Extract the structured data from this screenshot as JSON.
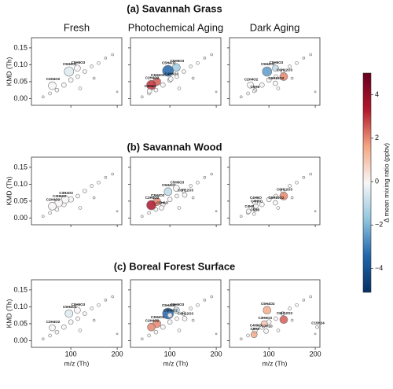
{
  "figure": {
    "row_titles": [
      "(a) Savannah Grass",
      "(b) Savannah Wood",
      "(c) Boreal Forest Surface"
    ],
    "column_titles": [
      "Fresh",
      "Photochemical Aging",
      "Dark Aging"
    ],
    "x_label": "m/z (Th)",
    "y_label": "KMD (Th)",
    "colorbar": {
      "label": "Δ mean mixing ratio (ppbv)",
      "lim": [
        -5.1,
        5.0
      ],
      "ticks": [
        {
          "value": -4,
          "label": "−4"
        },
        {
          "value": -2,
          "label": "−2"
        },
        0,
        2,
        4
      ],
      "colors": [
        "#053061",
        "#2166ac",
        "#92c5de",
        "#f7f7f7",
        "#f4a582",
        "#b2182b",
        "#67001f"
      ]
    }
  },
  "chart_data": [
    {
      "type": "scatter",
      "xlim": [
        15,
        210
      ],
      "ylim": [
        -0.02,
        0.18
      ],
      "xticks": [
        100,
        200
      ],
      "yticks": [
        {
          "value": 0,
          "label": "0.00"
        },
        0.05,
        {
          "value": 0.1,
          "label": "0.10"
        },
        0.15
      ],
      "x": [
        40,
        55,
        70,
        85,
        100,
        115,
        130,
        145,
        160,
        175,
        190,
        120,
        150,
        200,
        60,
        96,
        114
      ],
      "y": [
        0.005,
        0.015,
        0.025,
        0.04,
        0.055,
        0.065,
        0.08,
        0.095,
        0.105,
        0.12,
        0.13,
        0.03,
        0.06,
        0.02,
        0.038,
        0.08,
        0.09
      ],
      "size": [
        1.5,
        2,
        2.5,
        3,
        3,
        2.5,
        2.5,
        2,
        2,
        1.5,
        1.5,
        2,
        1.5,
        1,
        5,
        6,
        4
      ],
      "delta": [
        0,
        0,
        0,
        0,
        0,
        0,
        0,
        0,
        0,
        0,
        0,
        0,
        0,
        0,
        0,
        -0.5,
        0
      ],
      "labels": [
        null,
        null,
        null,
        null,
        null,
        null,
        null,
        null,
        null,
        null,
        null,
        null,
        null,
        null,
        "C2H4O2",
        "C5H4O2",
        "C5H6O3"
      ]
    },
    {
      "type": "scatter",
      "xlim": [
        15,
        210
      ],
      "ylim": [
        -0.02,
        0.18
      ],
      "xticks": [
        100,
        200
      ],
      "yticks": [
        {
          "value": 0,
          "label": "0.00"
        },
        0.05,
        {
          "value": 0.1,
          "label": "0.10"
        },
        0.15
      ],
      "x": [
        40,
        55,
        70,
        85,
        100,
        115,
        130,
        145,
        160,
        175,
        190,
        120,
        150,
        200,
        114,
        96,
        72,
        102,
        60,
        56
      ],
      "y": [
        0.005,
        0.015,
        0.025,
        0.04,
        0.055,
        0.065,
        0.08,
        0.095,
        0.105,
        0.12,
        0.13,
        0.03,
        0.06,
        0.02,
        0.092,
        0.082,
        0.05,
        0.058,
        0.04,
        0.022
      ],
      "size": [
        1.5,
        2,
        2.5,
        3,
        3,
        2.5,
        2.5,
        2,
        2,
        1.5,
        1.5,
        2,
        1.5,
        1,
        5,
        7,
        5,
        3,
        6,
        3
      ],
      "delta": [
        0,
        0,
        0,
        0,
        0,
        0,
        0,
        0,
        0,
        0,
        0,
        0,
        0,
        0,
        -1.5,
        -3.5,
        2.5,
        0,
        3,
        0
      ],
      "labels": [
        null,
        null,
        null,
        null,
        null,
        null,
        null,
        null,
        null,
        null,
        null,
        null,
        null,
        null,
        "C5H6O3",
        "C5H4O2",
        "C3H4O2",
        "C4H6O3",
        "C2H4O2",
        "C2H6O"
      ]
    },
    {
      "type": "scatter",
      "xlim": [
        15,
        210
      ],
      "ylim": [
        -0.02,
        0.18
      ],
      "xticks": [
        100,
        200
      ],
      "yticks": [
        {
          "value": 0,
          "label": "0.00"
        },
        0.05,
        {
          "value": 0.1,
          "label": "0.10"
        },
        0.15
      ],
      "x": [
        40,
        55,
        70,
        85,
        100,
        115,
        130,
        145,
        160,
        175,
        190,
        120,
        150,
        200,
        96,
        114,
        132,
        60,
        114,
        68
      ],
      "y": [
        0.005,
        0.015,
        0.025,
        0.04,
        0.055,
        0.065,
        0.08,
        0.095,
        0.105,
        0.12,
        0.13,
        0.03,
        0.06,
        0.02,
        0.08,
        0.09,
        0.065,
        0.04,
        0.045,
        0.022
      ],
      "size": [
        1.5,
        2,
        2.5,
        3,
        3,
        2.5,
        2.5,
        2,
        2,
        1.5,
        1.5,
        2,
        1.5,
        1,
        6,
        4,
        5,
        4,
        3,
        2
      ],
      "delta": [
        0,
        0,
        0,
        0,
        0,
        0,
        0,
        0,
        0,
        0,
        0,
        0,
        0,
        0,
        -2.5,
        -1,
        2,
        0,
        0,
        0
      ],
      "labels": [
        null,
        null,
        null,
        null,
        null,
        null,
        null,
        null,
        null,
        null,
        null,
        null,
        null,
        null,
        "C5H4O2",
        "C5H6O3",
        "C6H12O3",
        "C2H4O2",
        "C6H10O2",
        "C5H8"
      ]
    },
    {
      "type": "scatter",
      "xlim": [
        15,
        210
      ],
      "ylim": [
        -0.02,
        0.18
      ],
      "xticks": [
        100,
        200
      ],
      "yticks": [
        {
          "value": 0,
          "label": "0.00"
        },
        0.05,
        {
          "value": 0.1,
          "label": "0.10"
        },
        0.15
      ],
      "x": [
        40,
        55,
        70,
        85,
        100,
        115,
        130,
        145,
        160,
        175,
        190,
        120,
        150,
        200,
        88,
        74,
        60
      ],
      "y": [
        0.005,
        0.015,
        0.025,
        0.04,
        0.055,
        0.065,
        0.08,
        0.095,
        0.105,
        0.12,
        0.13,
        0.03,
        0.06,
        0.02,
        0.055,
        0.045,
        0.035
      ],
      "size": [
        1.5,
        2,
        2.5,
        3,
        3.5,
        2.5,
        2.5,
        2,
        2,
        1.5,
        1.5,
        2,
        1.5,
        1,
        5,
        5,
        5
      ],
      "delta": [
        0,
        0,
        0,
        0,
        0,
        0,
        0,
        0,
        0,
        0,
        0,
        0,
        0,
        0,
        0,
        0,
        0
      ],
      "labels": [
        null,
        null,
        null,
        null,
        null,
        null,
        null,
        null,
        null,
        null,
        null,
        null,
        null,
        null,
        "C3H4O3",
        "C3H6O2",
        "C2H4O2"
      ]
    },
    {
      "type": "scatter",
      "xlim": [
        15,
        210
      ],
      "ylim": [
        -0.02,
        0.18
      ],
      "xticks": [
        100,
        200
      ],
      "yticks": [
        {
          "value": 0,
          "label": "0.00"
        },
        0.05,
        {
          "value": 0.1,
          "label": "0.10"
        },
        0.15
      ],
      "x": [
        40,
        55,
        70,
        85,
        100,
        115,
        130,
        145,
        160,
        175,
        190,
        120,
        150,
        200,
        96,
        114,
        132,
        72,
        60,
        82
      ],
      "y": [
        0.005,
        0.015,
        0.025,
        0.04,
        0.055,
        0.065,
        0.08,
        0.095,
        0.105,
        0.12,
        0.13,
        0.03,
        0.06,
        0.02,
        0.078,
        0.088,
        0.068,
        0.048,
        0.038,
        0.03
      ],
      "size": [
        1.5,
        2,
        2.5,
        3,
        3,
        2.5,
        2.5,
        2,
        2,
        1.5,
        1.5,
        2,
        1.5,
        1,
        5,
        4,
        3,
        5,
        6,
        3
      ],
      "delta": [
        0,
        0,
        0,
        0,
        0,
        0,
        0,
        0,
        0,
        0,
        0,
        0,
        0,
        0,
        -1,
        0,
        0,
        2,
        3.5,
        0
      ],
      "labels": [
        null,
        null,
        null,
        null,
        null,
        null,
        null,
        null,
        null,
        null,
        null,
        null,
        null,
        null,
        "C5H4O2",
        "C5H6O3",
        "C6H12O3",
        "C3H4O2",
        "C2H4O2",
        "C5H6O"
      ]
    },
    {
      "type": "scatter",
      "xlim": [
        15,
        210
      ],
      "ylim": [
        -0.02,
        0.18
      ],
      "xticks": [
        100,
        200
      ],
      "yticks": [
        {
          "value": 0,
          "label": "0.00"
        },
        0.05,
        {
          "value": 0.1,
          "label": "0.10"
        },
        0.15
      ],
      "x": [
        40,
        55,
        70,
        85,
        100,
        115,
        130,
        145,
        160,
        175,
        190,
        120,
        150,
        200,
        132,
        114,
        70,
        72,
        56,
        68
      ],
      "y": [
        0.005,
        0.015,
        0.025,
        0.04,
        0.055,
        0.065,
        0.08,
        0.095,
        0.105,
        0.12,
        0.13,
        0.03,
        0.06,
        0.02,
        0.065,
        0.045,
        0.045,
        0.035,
        0.02,
        0.012
      ],
      "size": [
        1.5,
        2,
        2.5,
        3,
        3,
        2.5,
        2.5,
        2,
        2,
        1.5,
        1.5,
        2,
        1.5,
        1,
        5,
        3,
        3,
        3,
        3,
        2
      ],
      "delta": [
        0,
        0,
        0,
        0,
        0,
        0,
        0,
        0,
        0,
        0,
        0,
        0,
        0,
        0,
        2,
        0,
        0,
        0,
        0,
        0
      ],
      "labels": [
        null,
        null,
        null,
        null,
        null,
        null,
        null,
        null,
        null,
        null,
        null,
        null,
        null,
        null,
        "C6H12O3",
        "C6H10O2",
        "C4H6O",
        "C4H8O",
        "C4H8",
        "C5H8"
      ]
    },
    {
      "type": "scatter",
      "xlim": [
        15,
        210
      ],
      "ylim": [
        -0.02,
        0.18
      ],
      "xticks": [
        100,
        200
      ],
      "yticks": [
        {
          "value": 0,
          "label": "0.00"
        },
        0.05,
        {
          "value": 0.1,
          "label": "0.10"
        },
        0.15
      ],
      "x": [
        40,
        55,
        70,
        85,
        100,
        115,
        130,
        145,
        160,
        175,
        190,
        120,
        150,
        200,
        114,
        96,
        60
      ],
      "y": [
        0.005,
        0.015,
        0.025,
        0.04,
        0.055,
        0.065,
        0.08,
        0.095,
        0.105,
        0.12,
        0.13,
        0.03,
        0.06,
        0.02,
        0.09,
        0.08,
        0.038
      ],
      "size": [
        1.5,
        2,
        2.5,
        3,
        3,
        2.5,
        2.5,
        2,
        2,
        1.5,
        1.5,
        2,
        1.5,
        1,
        4,
        5,
        4
      ],
      "delta": [
        0,
        0,
        0,
        0,
        0,
        0,
        0,
        0,
        0,
        0,
        0,
        0,
        0,
        0,
        0,
        -0.5,
        0
      ],
      "labels": [
        null,
        null,
        null,
        null,
        null,
        null,
        null,
        null,
        null,
        null,
        null,
        null,
        null,
        null,
        "C5H6O3",
        "C5H4O2",
        "C2H4O2"
      ]
    },
    {
      "type": "scatter",
      "xlim": [
        15,
        210
      ],
      "ylim": [
        -0.02,
        0.18
      ],
      "xticks": [
        100,
        200
      ],
      "yticks": [
        {
          "value": 0,
          "label": "0.00"
        },
        0.05,
        {
          "value": 0.1,
          "label": "0.10"
        },
        0.15
      ],
      "x": [
        40,
        55,
        70,
        85,
        100,
        115,
        130,
        145,
        160,
        175,
        190,
        120,
        150,
        200,
        114,
        96,
        100,
        132,
        72,
        60
      ],
      "y": [
        0.005,
        0.015,
        0.025,
        0.04,
        0.055,
        0.065,
        0.08,
        0.095,
        0.105,
        0.12,
        0.13,
        0.03,
        0.06,
        0.02,
        0.09,
        0.08,
        0.075,
        0.065,
        0.05,
        0.04
      ],
      "size": [
        1.5,
        2,
        2.5,
        3,
        3,
        2.5,
        2.5,
        2,
        2,
        1.5,
        1.5,
        2,
        1.5,
        1,
        4,
        7,
        3,
        3,
        5,
        5
      ],
      "delta": [
        0,
        0,
        0,
        0,
        0,
        0,
        0,
        0,
        0,
        0,
        0,
        0,
        0,
        0,
        -1,
        -3.5,
        0,
        0,
        2,
        2
      ],
      "labels": [
        null,
        null,
        null,
        null,
        null,
        null,
        null,
        null,
        null,
        null,
        null,
        null,
        null,
        null,
        "C5H6O3",
        "C5H4O2",
        "C5H8O2",
        "C6H12O3",
        "C3H4O2",
        "C2H4O2"
      ]
    },
    {
      "type": "scatter",
      "xlim": [
        15,
        210
      ],
      "ylim": [
        -0.02,
        0.18
      ],
      "xticks": [
        100,
        200
      ],
      "yticks": [
        {
          "value": 0,
          "label": "0.00"
        },
        0.05,
        {
          "value": 0.1,
          "label": "0.10"
        },
        0.15
      ],
      "x": [
        40,
        55,
        70,
        85,
        100,
        115,
        130,
        145,
        160,
        175,
        190,
        120,
        150,
        200,
        96,
        132,
        90,
        70,
        68,
        94,
        204
      ],
      "y": [
        0.005,
        0.015,
        0.025,
        0.04,
        0.055,
        0.065,
        0.08,
        0.095,
        0.105,
        0.12,
        0.13,
        0.03,
        0.06,
        0.02,
        0.09,
        0.062,
        0.05,
        0.03,
        0.018,
        0.028,
        0.04
      ],
      "size": [
        1.5,
        2,
        2.5,
        3,
        3,
        2.5,
        2.5,
        2,
        2,
        1.5,
        1.5,
        2,
        1.5,
        1,
        5,
        5,
        4,
        3,
        4,
        3,
        2
      ],
      "delta": [
        0,
        0,
        0,
        0,
        0,
        0,
        0,
        0,
        0,
        0,
        0,
        0,
        0,
        0,
        1.5,
        2.5,
        1,
        0,
        1.5,
        0,
        0
      ],
      "labels": [
        null,
        null,
        null,
        null,
        null,
        null,
        null,
        null,
        null,
        null,
        null,
        null,
        null,
        null,
        "C5H4O2",
        "C6H12O3",
        "C3H6O3",
        "C4H6O",
        "C5H8",
        "C7H10",
        "C15H24"
      ]
    }
  ]
}
